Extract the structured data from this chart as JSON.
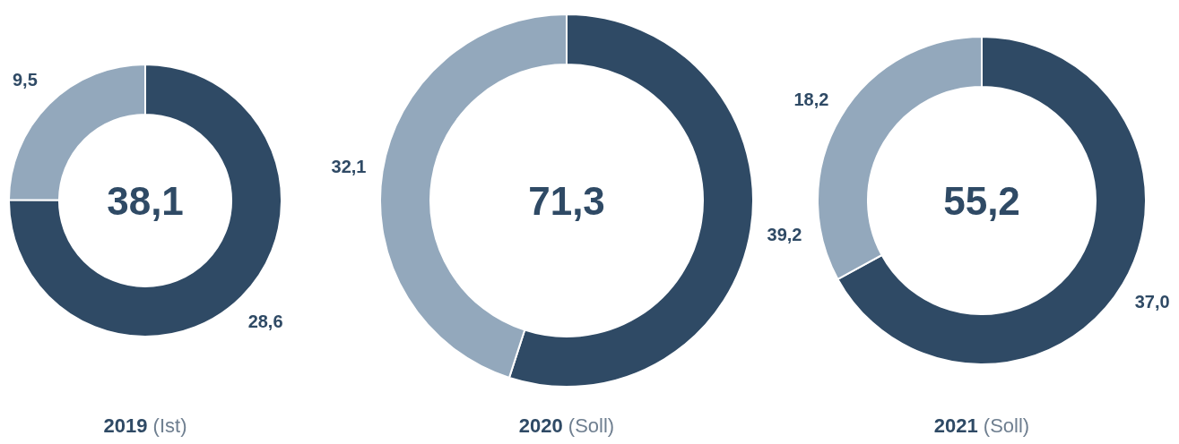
{
  "chart_data": [
    {
      "type": "donut",
      "title": "2019 (Ist)",
      "categories": [
        null,
        null
      ],
      "values": [
        28.6,
        9.5
      ],
      "colors": [
        "#2f4a65",
        "#93a8bc"
      ],
      "value_labels": [
        "28,6",
        "9,5"
      ],
      "annotations": [
        "38,1"
      ]
    },
    {
      "type": "donut",
      "title": "2020 (Soll)",
      "categories": [
        null,
        null
      ],
      "values": [
        39.2,
        32.1
      ],
      "colors": [
        "#2f4a65",
        "#93a8bc"
      ],
      "value_labels": [
        "39,2",
        "32,1"
      ],
      "annotations": [
        "71,3"
      ]
    },
    {
      "type": "donut",
      "title": "2021 (Soll)",
      "categories": [
        null,
        null
      ],
      "values": [
        37.0,
        18.2
      ],
      "colors": [
        "#2f4a65",
        "#93a8bc"
      ],
      "value_labels": [
        "37,0",
        "18,2"
      ],
      "annotations": [
        "55,2"
      ]
    }
  ]
}
